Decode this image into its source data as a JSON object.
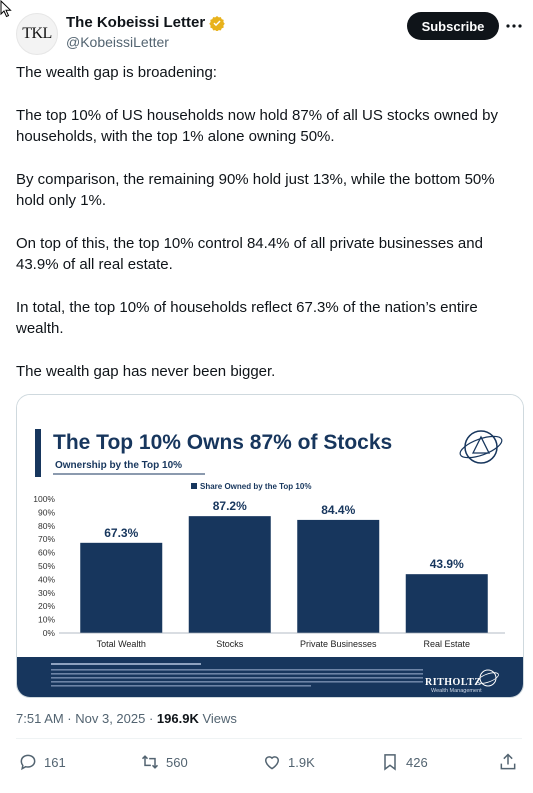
{
  "author": {
    "avatar_text": "TKL",
    "display_name": "The Kobeissi Letter",
    "handle": "@KobeissiLetter"
  },
  "subscribe_label": "Subscribe",
  "post": {
    "paragraphs": [
      "The wealth gap is broadening:",
      "The top 10% of US households now hold 87% of all US stocks owned by households, with the top 1% alone owning 50%.",
      "By comparison, the remaining 90% hold just 13%, while the bottom 50% hold only 1%.",
      "On top of this, the top 10% control 84.4% of all private businesses and 43.9% of all real estate.",
      "In total, the top 10% of households reflect 67.3% of the nation’s entire wealth.",
      "The wealth gap has never been bigger."
    ]
  },
  "chart_data": {
    "type": "bar",
    "title": "The Top 10% Owns 87% of Stocks",
    "subtitle": "Ownership by the Top 10%",
    "legend": [
      "Share Owned by the Top 10%"
    ],
    "categories": [
      "Total Wealth",
      "Stocks",
      "Private Businesses",
      "Real Estate"
    ],
    "values": [
      67.3,
      87.2,
      84.4,
      43.9
    ],
    "data_labels": [
      "67.3%",
      "87.2%",
      "84.4%",
      "43.9%"
    ],
    "ylim": [
      0,
      100
    ],
    "yticks": [
      "100%",
      "90%",
      "80%",
      "70%",
      "60%",
      "50%",
      "40%",
      "30%",
      "20%",
      "10%",
      "0%"
    ],
    "brand": "RITHOLTZ",
    "brand_sub": "Wealth Management",
    "colors": {
      "bar": "#17365d",
      "title": "#17365d",
      "value_label": "#17365d"
    }
  },
  "meta": {
    "time": "7:51 AM · Nov 3, 2025 · ",
    "views_count": "196.9K",
    "views_label": " Views"
  },
  "actions": {
    "replies": "161",
    "reposts": "560",
    "likes": "1.9K",
    "bookmarks": "426"
  }
}
